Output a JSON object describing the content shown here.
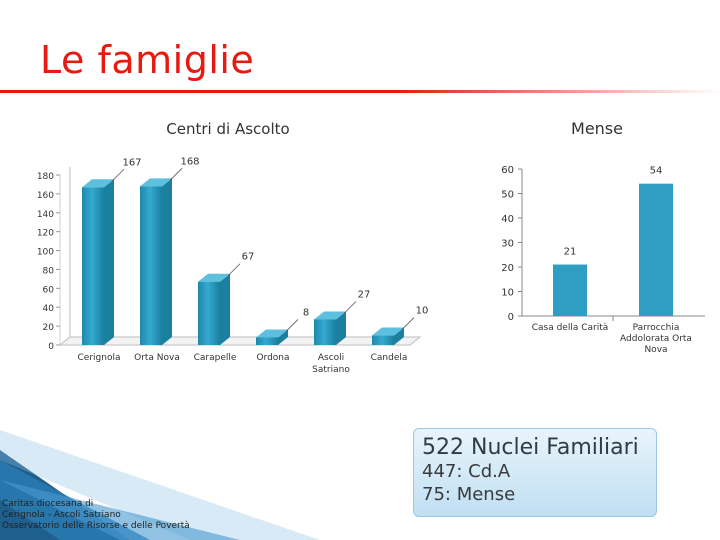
{
  "slide": {
    "title": "Le famiglie",
    "callout_main": "522 Nuclei Familiari",
    "callout_line1": "447: Cd.A",
    "callout_line2": "75: Mense",
    "footer_line1": "Caritas diocesana di",
    "footer_line2": "Cerignola - Ascoli Satriano",
    "footer_line3": "Osservatorio delle Risorse e delle Povertà"
  },
  "colors": {
    "title": "#e8190f",
    "bar": "#2e9fc2",
    "bar_light": "#5cc0de",
    "bar_dark": "#1b7fa0"
  },
  "chart_data": [
    {
      "type": "bar",
      "title": "Centri di Ascolto",
      "categories": [
        "Cerignola",
        "Orta Nova",
        "Carapelle",
        "Ordona",
        "Ascoli Satriano",
        "Candela"
      ],
      "values": [
        167,
        168,
        67,
        8,
        27,
        10
      ],
      "yticks": [
        0,
        20,
        40,
        60,
        80,
        100,
        120,
        140,
        160,
        180
      ],
      "ylim": [
        0,
        180
      ],
      "style": "3d",
      "grid": false,
      "legend": "none"
    },
    {
      "type": "bar",
      "title": "Mense",
      "categories": [
        "Casa della Carità",
        "Parrocchia Addolorata Orta Nova"
      ],
      "values": [
        21,
        54
      ],
      "yticks": [
        0,
        10,
        20,
        30,
        40,
        50,
        60
      ],
      "ylim": [
        0,
        60
      ],
      "grid": false,
      "legend": "none"
    }
  ]
}
